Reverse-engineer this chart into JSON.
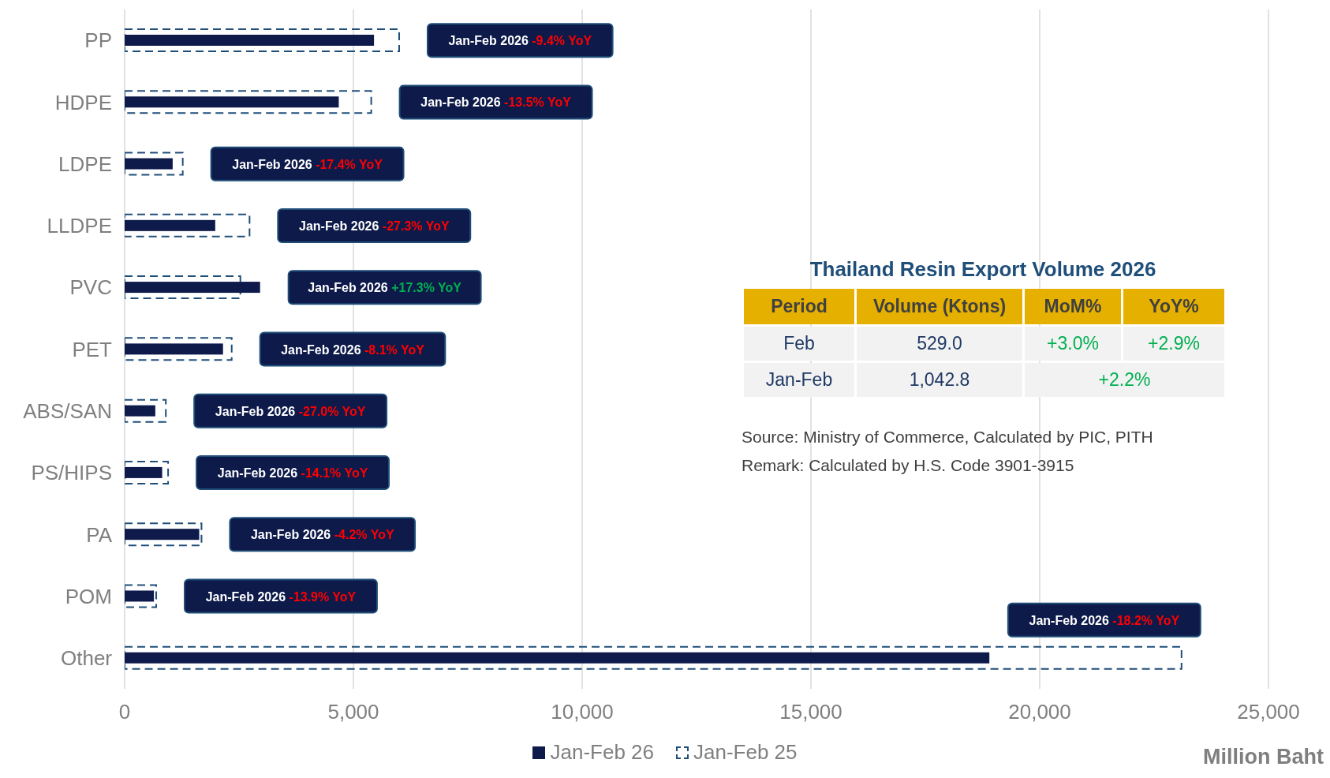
{
  "chart_data": [
    {
      "type": "bar",
      "orientation": "horizontal",
      "categories": [
        "PP",
        "HDPE",
        "LDPE",
        "LLDPE",
        "PVC",
        "PET",
        "ABS/SAN",
        "PS/HIPS",
        "PA",
        "POM",
        "Other"
      ],
      "series": [
        {
          "name": "Jan-Feb 26",
          "color": "#0d1a4a",
          "values": [
            5450,
            4680,
            1050,
            1980,
            2960,
            2150,
            670,
            820,
            1630,
            640,
            18900
          ]
        },
        {
          "name": "Jan-Feb 25",
          "color": "#1f4e79",
          "line_style": "dashed",
          "values": [
            6000,
            5390,
            1270,
            2730,
            2530,
            2340,
            900,
            950,
            1680,
            690,
            23100
          ]
        }
      ],
      "xlim": [
        0,
        25000
      ],
      "xticks": [
        0,
        {
          "value": 5000,
          "label": "5,000"
        },
        {
          "value": 10000,
          "label": "10,000"
        },
        {
          "value": 15000,
          "label": "15,000"
        },
        {
          "value": 20000,
          "label": "20,000"
        },
        {
          "value": 25000,
          "label": "25,000"
        }
      ],
      "xlabel": "Million Baht",
      "grid": "x",
      "legend": "bottom",
      "annotations": [
        "Jan-Feb 2026 -9.4% YoY",
        "Jan-Feb 2026 -13.5% YoY",
        "Jan-Feb 2026 -17.4% YoY",
        "Jan-Feb 2026 -27.3% YoY",
        "Jan-Feb 2026 +17.3% YoY",
        "Jan-Feb 2026 -8.1% YoY",
        "Jan-Feb 2026 -27.0% YoY",
        "Jan-Feb 2026 -14.1% YoY",
        "Jan-Feb 2026 -4.2% YoY",
        "Jan-Feb 2026 -13.9% YoY",
        "Jan-Feb 2026 -18.2% YoY"
      ]
    },
    {
      "type": "other",
      "title": "Thailand Resin Export Volume 2026",
      "categories": [
        "Period",
        "Volume (Ktons)",
        "MoM%",
        "YoY%"
      ],
      "annotations": [
        "Feb",
        "529.0",
        "+3.0%",
        "+2.9%",
        "Jan-Feb",
        "1,042.8",
        "+2.2%",
        "Source: Ministry of Commerce, Calculated by PIC, PITH",
        "Remark: Calculated by H.S. Code 3901-3915"
      ]
    }
  ]
}
